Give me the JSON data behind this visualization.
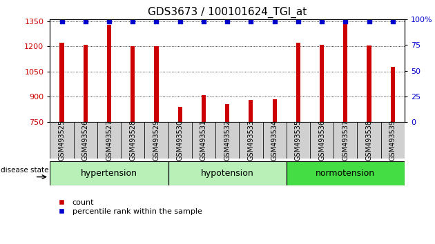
{
  "title": "GDS3673 / 100101624_TGI_at",
  "samples": [
    "GSM493525",
    "GSM493526",
    "GSM493527",
    "GSM493528",
    "GSM493529",
    "GSM493530",
    "GSM493531",
    "GSM493532",
    "GSM493533",
    "GSM493534",
    "GSM493535",
    "GSM493536",
    "GSM493537",
    "GSM493538",
    "GSM493539"
  ],
  "counts": [
    1220,
    1210,
    1330,
    1200,
    1200,
    840,
    910,
    855,
    880,
    885,
    1220,
    1210,
    1350,
    1205,
    1078
  ],
  "ylim_left": [
    750,
    1360
  ],
  "ylim_right": [
    0,
    100
  ],
  "yticks_left": [
    750,
    900,
    1050,
    1200,
    1350
  ],
  "yticks_right": [
    0,
    25,
    50,
    75,
    100
  ],
  "bar_color": "#cc0000",
  "dot_color": "#0000cd",
  "bar_width": 0.18,
  "bg_color": "#ffffff",
  "plot_bg": "#ffffff",
  "title_fontsize": 11,
  "tick_label_fontsize": 7,
  "group_label_fontsize": 9,
  "legend_fontsize": 8,
  "groups": [
    {
      "label": "hypertension",
      "start": 0,
      "end": 5,
      "color": "#aaf0aa"
    },
    {
      "label": "hypotension",
      "start": 5,
      "end": 10,
      "color": "#aaf0aa"
    },
    {
      "label": "normotension",
      "start": 10,
      "end": 15,
      "color": "#44dd44"
    }
  ]
}
